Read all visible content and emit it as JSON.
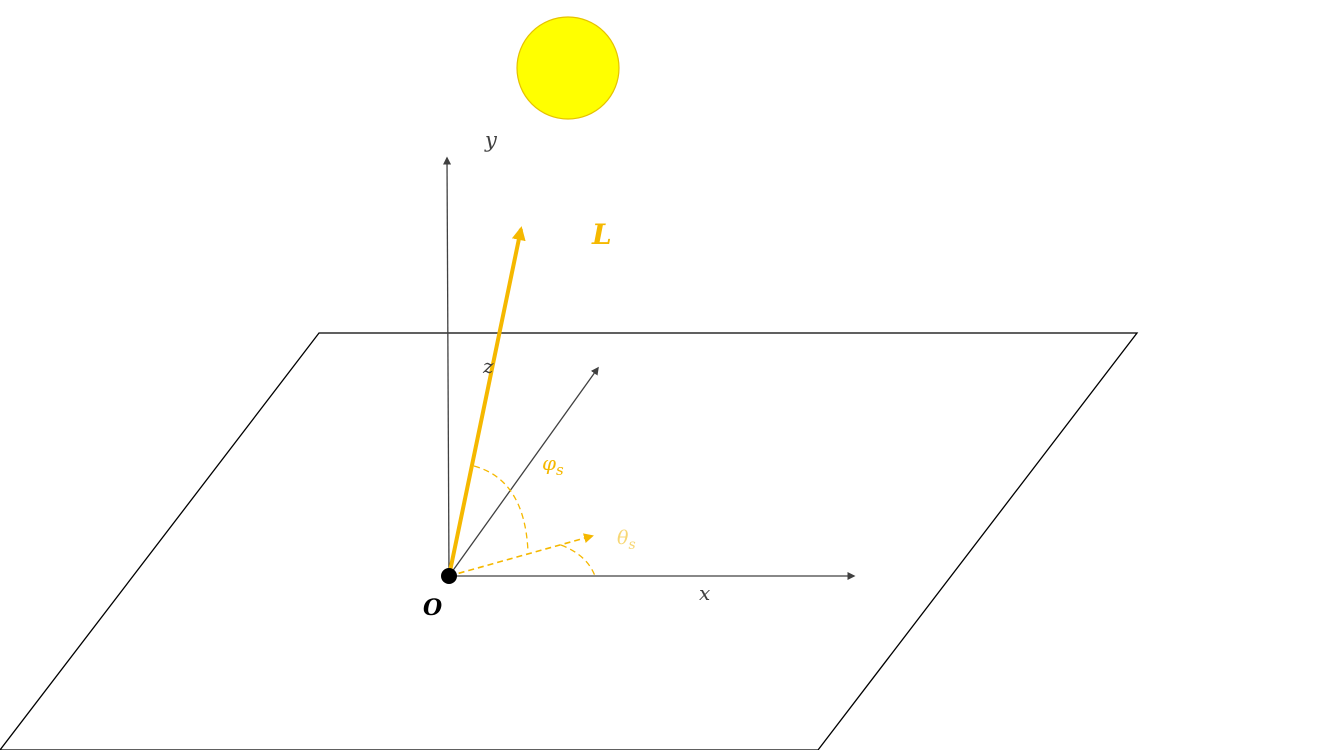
{
  "labels": {
    "y_axis": "y",
    "z_axis": "z",
    "x_axis": "x",
    "origin": "O",
    "light_vector": "L",
    "phi": "φ",
    "phi_sub": "s",
    "theta": "θ",
    "theta_sub": "s"
  },
  "colors": {
    "axis": "#404040",
    "plane": "#000000",
    "light": "#F5B800",
    "sun_fill": "#FFFF00",
    "sun_stroke": "#E6C200",
    "theta_label": "#F7D774",
    "origin_point": "#000000"
  }
}
